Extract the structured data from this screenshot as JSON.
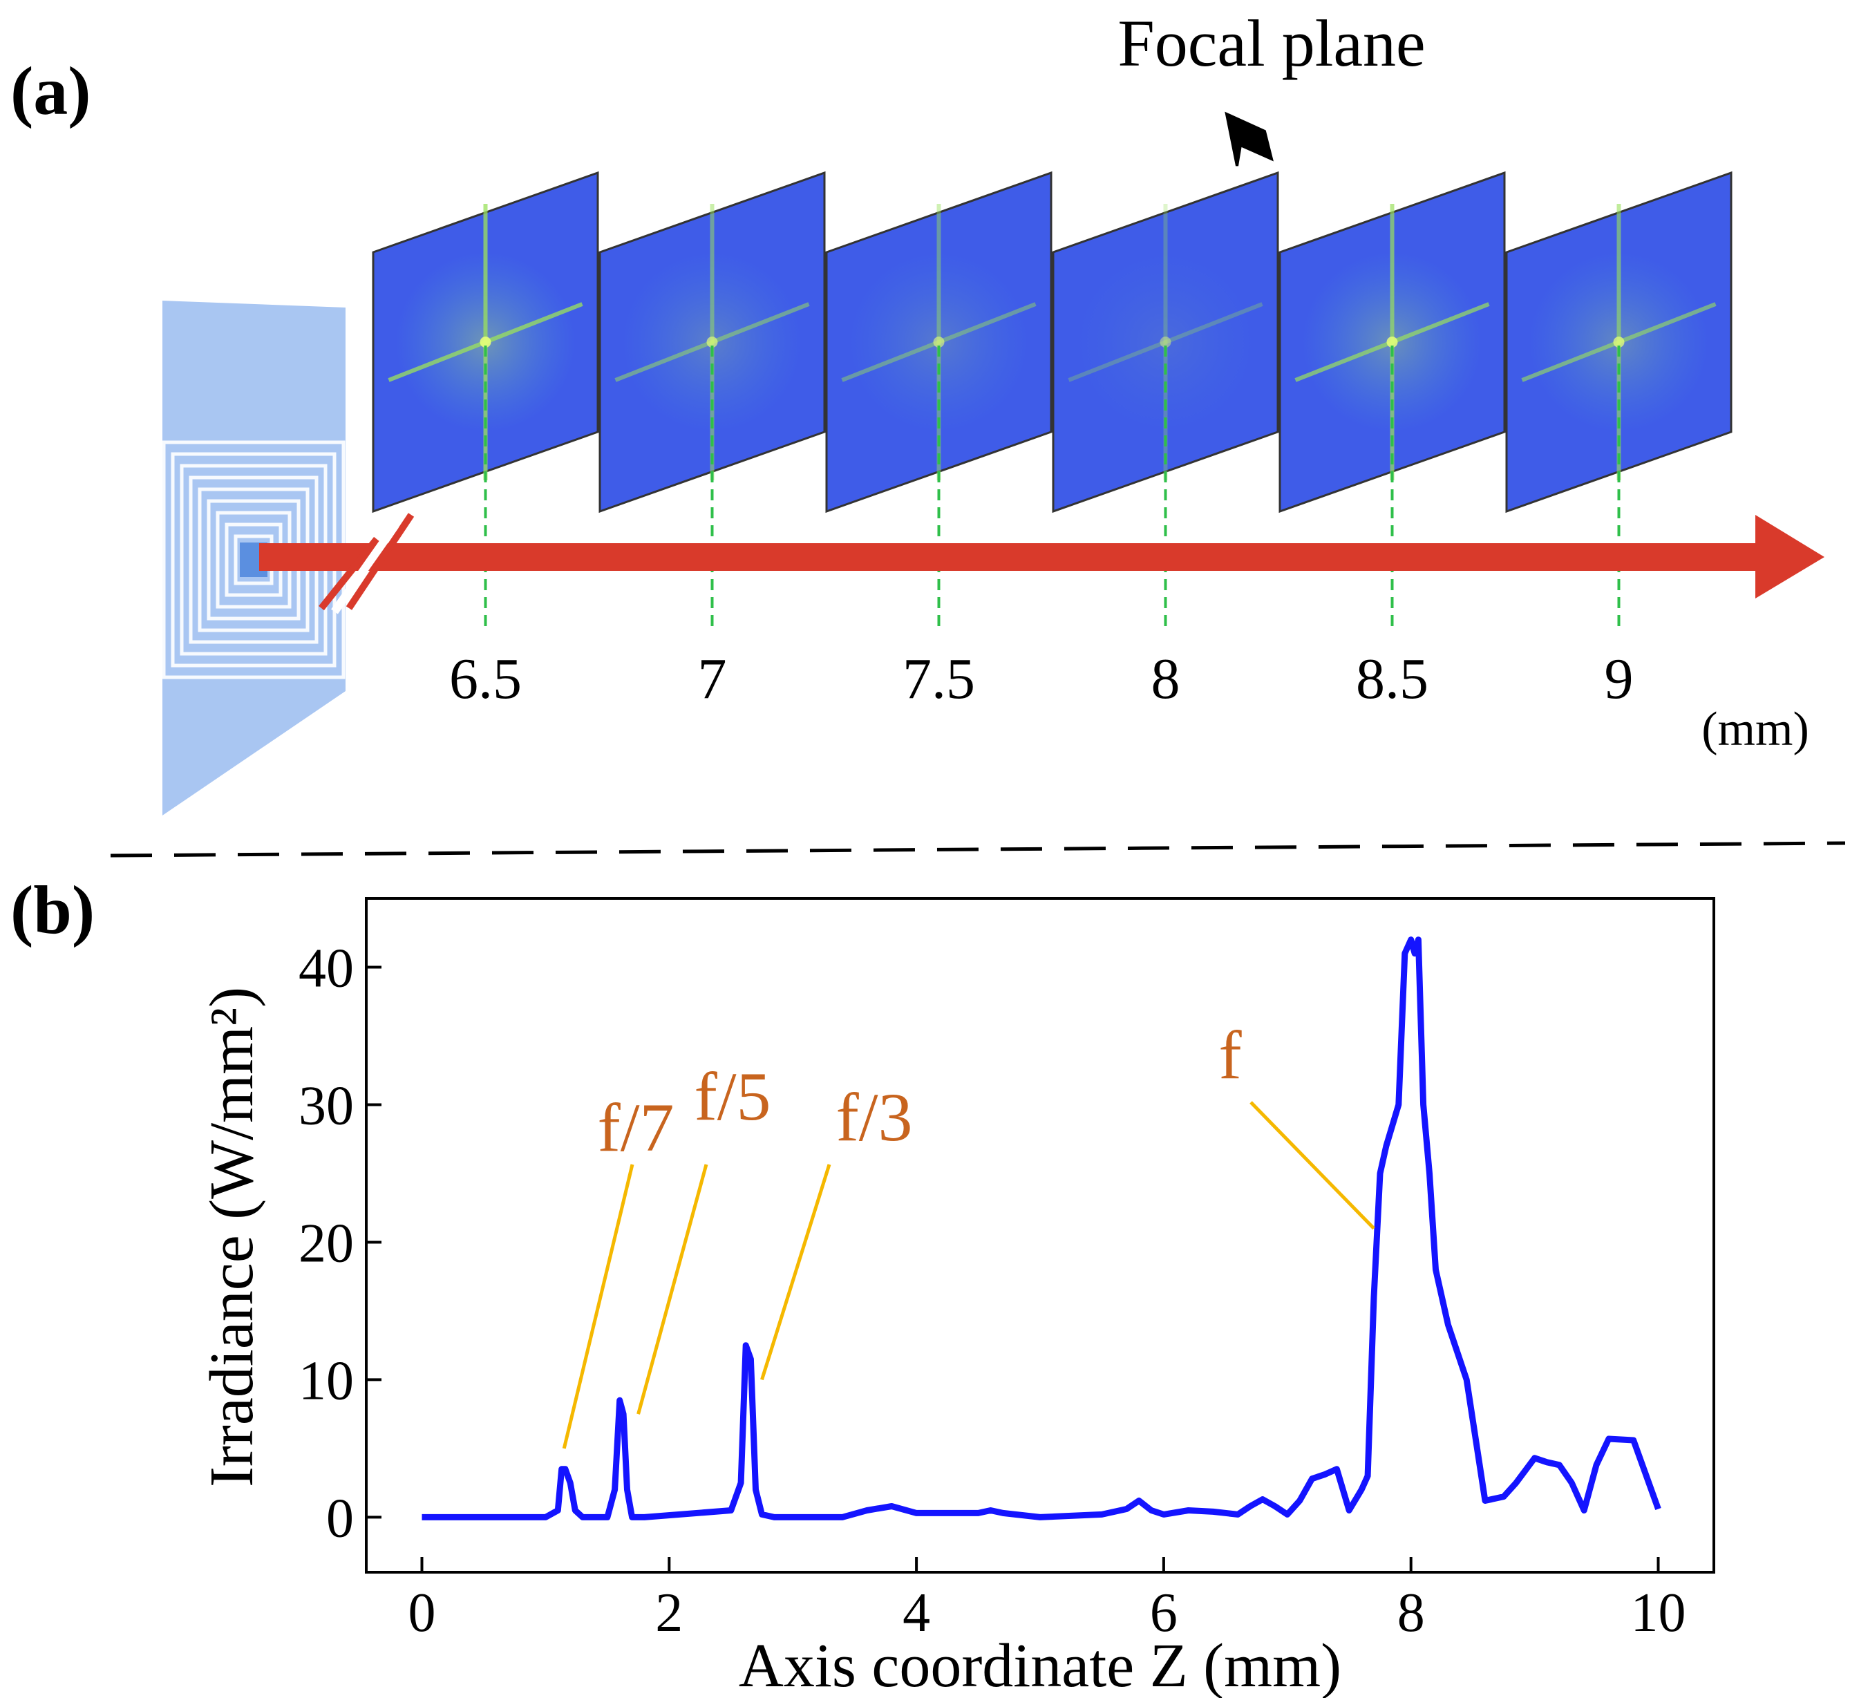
{
  "panel_a": {
    "label": "(a)",
    "focal_plane_label": "Focal plane",
    "unit_label": "(mm)",
    "planes": [
      {
        "z": "6.5",
        "brightness": 0.85
      },
      {
        "z": "7",
        "brightness": 0.45
      },
      {
        "z": "7.5",
        "brightness": 0.35
      },
      {
        "z": "8",
        "brightness": 0.1
      },
      {
        "z": "8.5",
        "brightness": 0.75
      },
      {
        "z": "9",
        "brightness": 0.6
      }
    ],
    "focal_plane_index": 3,
    "colors": {
      "axis_arrow": "#d93a2b",
      "guide_line": "#2fbf4a",
      "plane_base": "#3f5ce8",
      "speckle": "#9be15d",
      "lens": "#8cb4ef"
    }
  },
  "panel_b": {
    "label": "(b)",
    "annotations": [
      {
        "text": "f/7",
        "z": 1.15,
        "irradiance": 5
      },
      {
        "text": "f/5",
        "z": 1.75,
        "irradiance": 7.5
      },
      {
        "text": "f/3",
        "z": 2.75,
        "irradiance": 10
      },
      {
        "text": "f",
        "z": 7.7,
        "irradiance": 21
      }
    ],
    "colors": {
      "line": "#1414ff",
      "annotation_text": "#c8641e",
      "leader": "#f5b800"
    }
  },
  "chart_data": {
    "type": "line",
    "title": "",
    "xlabel": "Axis coordinate Z (mm)",
    "ylabel": "Irradiance (W/mm²)",
    "xlim": [
      -0.45,
      10.45
    ],
    "ylim": [
      -4,
      45
    ],
    "xticks": [
      0,
      2,
      4,
      6,
      8,
      10
    ],
    "yticks": [
      0,
      10,
      20,
      30,
      40
    ],
    "series": [
      {
        "name": "Irradiance",
        "x": [
          0,
          1.0,
          1.1,
          1.13,
          1.16,
          1.2,
          1.24,
          1.3,
          1.5,
          1.56,
          1.6,
          1.63,
          1.66,
          1.7,
          1.8,
          2.5,
          2.58,
          2.62,
          2.66,
          2.7,
          2.75,
          2.85,
          3.4,
          3.6,
          3.8,
          4.0,
          4.5,
          4.6,
          4.7,
          5.0,
          5.5,
          5.7,
          5.8,
          5.9,
          6.0,
          6.2,
          6.4,
          6.6,
          6.7,
          6.8,
          6.9,
          7.0,
          7.1,
          7.2,
          7.3,
          7.4,
          7.5,
          7.6,
          7.65,
          7.7,
          7.75,
          7.8,
          7.9,
          7.95,
          8.0,
          8.03,
          8.06,
          8.1,
          8.15,
          8.2,
          8.3,
          8.45,
          8.6,
          8.75,
          8.85,
          9.0,
          9.1,
          9.2,
          9.3,
          9.4,
          9.5,
          9.6,
          9.8,
          10.0
        ],
        "y": [
          0,
          0,
          0.5,
          3.5,
          3.5,
          2.5,
          0.5,
          0,
          0,
          2,
          8.5,
          7.5,
          2,
          0,
          0,
          0.5,
          2.5,
          12.5,
          11.5,
          2,
          0.2,
          0,
          0,
          0.5,
          0.8,
          0.3,
          0.3,
          0.5,
          0.3,
          0,
          0.2,
          0.6,
          1.2,
          0.5,
          0.2,
          0.5,
          0.4,
          0.2,
          0.8,
          1.3,
          0.8,
          0.2,
          1.2,
          2.8,
          3.1,
          3.5,
          0.5,
          2,
          3,
          16,
          25,
          27,
          30,
          41,
          42,
          41,
          42,
          30,
          25,
          18,
          14,
          10,
          1.2,
          1.5,
          2.5,
          4.3,
          4,
          3.8,
          2.5,
          0.5,
          3.8,
          5.7,
          5.6,
          0.6
        ]
      }
    ]
  }
}
